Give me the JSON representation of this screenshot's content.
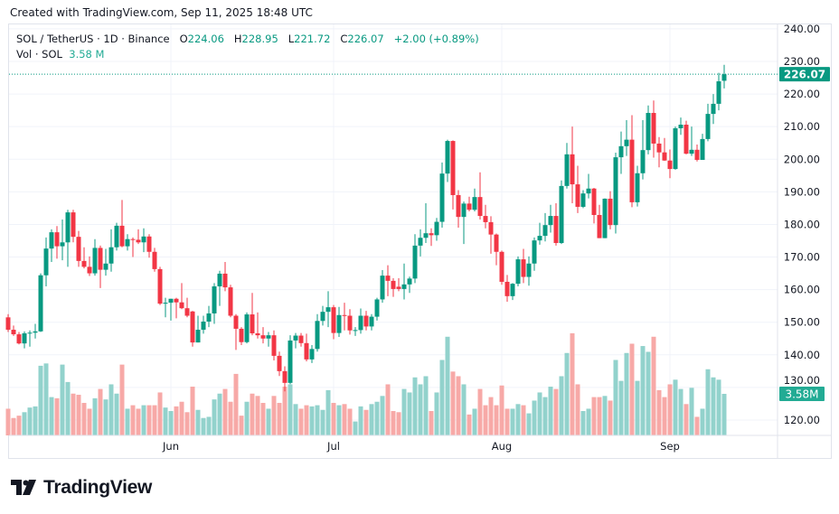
{
  "header": {
    "created_text": "Created with TradingView.com, Sep 11, 2025 18:48 UTC"
  },
  "legend": {
    "symbol": "SOL / TetherUS · 1D · Binance",
    "open_label": "O",
    "open": "224.06",
    "high_label": "H",
    "high": "228.95",
    "low_label": "L",
    "low": "221.72",
    "close_label": "C",
    "close": "226.07",
    "change": "+2.00 (+0.89%)",
    "volume_label": "Vol · SOL",
    "volume": "3.58 M"
  },
  "badges": {
    "last_price": "226.07",
    "last_volume": "3.58M"
  },
  "footer": {
    "logo_text": "TradingView"
  },
  "colors": {
    "up": "#089981",
    "down": "#F23645",
    "up_volume": "#92d2cc",
    "down_volume": "#f7a9a7",
    "grid": "#f0f3fa",
    "text": "#131722"
  },
  "chart_data": {
    "type": "candlestick",
    "title": "SOL / TetherUS · 1D · Binance",
    "interval": "1D",
    "ylim": [
      115,
      243
    ],
    "y_ticks": [
      "240.00",
      "230.00",
      "220.00",
      "210.00",
      "200.00",
      "190.00",
      "180.00",
      "170.00",
      "160.00",
      "150.00",
      "140.00",
      "130.00",
      "120.00"
    ],
    "x_ticks": [
      "Jun",
      "Jul",
      "Aug",
      "Sep"
    ],
    "grid": true,
    "volume_unit": "M",
    "candle_fields": [
      "open",
      "high",
      "low",
      "close",
      "volume"
    ],
    "candles": [
      [
        151.5,
        152.5,
        147,
        147.7,
        2.3
      ],
      [
        147.7,
        149,
        145.8,
        146.3,
        1.5
      ],
      [
        146.3,
        147,
        143.2,
        143.5,
        1.7
      ],
      [
        143.5,
        147.2,
        142,
        146.6,
        2.0
      ],
      [
        146.6,
        147.5,
        142.5,
        146.8,
        2.4
      ],
      [
        146.8,
        149.5,
        145,
        147.2,
        2.5
      ],
      [
        147.2,
        165,
        147,
        164.4,
        6.0
      ],
      [
        164.4,
        176,
        161,
        172.6,
        6.2
      ],
      [
        172.6,
        178.5,
        168.5,
        177.6,
        3.3
      ],
      [
        177.6,
        179.5,
        169.5,
        173.3,
        3.2
      ],
      [
        173.3,
        181.5,
        169,
        174.5,
        6.1
      ],
      [
        174.5,
        184.5,
        167,
        183.7,
        4.6
      ],
      [
        183.7,
        184.5,
        174.5,
        176.2,
        3.6
      ],
      [
        176.2,
        178,
        167,
        168.8,
        3.5
      ],
      [
        168.8,
        173,
        166.5,
        167,
        2.8
      ],
      [
        167,
        170.2,
        164.2,
        165,
        2.3
      ],
      [
        165,
        175.5,
        164.3,
        172.8,
        3.2
      ],
      [
        172.8,
        173.5,
        160.5,
        166.1,
        4.0
      ],
      [
        166.1,
        172.5,
        164.3,
        168,
        3.1
      ],
      [
        168,
        178.5,
        165.5,
        173,
        4.4
      ],
      [
        173,
        180.5,
        172,
        179.6,
        3.6
      ],
      [
        179.6,
        187.5,
        173,
        173.3,
        6.1
      ],
      [
        173.3,
        177,
        172,
        175.5,
        2.3
      ],
      [
        175.5,
        176,
        170,
        175.3,
        2.6
      ],
      [
        175.3,
        178.5,
        174,
        174.5,
        2.3
      ],
      [
        174.5,
        178.8,
        171.5,
        176.3,
        2.6
      ],
      [
        176.3,
        177,
        169.8,
        171.6,
        2.6
      ],
      [
        171.6,
        172.8,
        165.5,
        166.3,
        2.6
      ],
      [
        166.3,
        167,
        155.3,
        155.7,
        3.7
      ],
      [
        155.7,
        157.5,
        151.5,
        156,
        2.4
      ],
      [
        156,
        157.2,
        150.5,
        157.2,
        2.1
      ],
      [
        157.2,
        157.5,
        151.2,
        156.1,
        2.5
      ],
      [
        156.1,
        162,
        154,
        154.3,
        2.9
      ],
      [
        154.3,
        157.5,
        151.5,
        152,
        2.0
      ],
      [
        153.3,
        153.5,
        142.5,
        143.8,
        4.2
      ],
      [
        143.8,
        152,
        143.8,
        147.7,
        2.2
      ],
      [
        147.7,
        152,
        146.5,
        150.2,
        1.5
      ],
      [
        150.2,
        155,
        148.5,
        152.7,
        1.6
      ],
      [
        152.7,
        162,
        149.5,
        161,
        3.1
      ],
      [
        161,
        165.8,
        155,
        164.9,
        3.6
      ],
      [
        164.9,
        168.5,
        159.5,
        160.7,
        4.0
      ],
      [
        160.7,
        161.5,
        151.5,
        152,
        2.9
      ],
      [
        152,
        152.5,
        141.5,
        148,
        5.3
      ],
      [
        148,
        148.5,
        143,
        143.9,
        1.7
      ],
      [
        143.9,
        153,
        143.5,
        152.4,
        2.9
      ],
      [
        152.4,
        159,
        146,
        146.6,
        3.6
      ],
      [
        146.6,
        153,
        145,
        146,
        3.4
      ],
      [
        146,
        148.5,
        143.5,
        145,
        2.8
      ],
      [
        145,
        147,
        142.5,
        146,
        2.3
      ],
      [
        146,
        147.5,
        138.3,
        139.7,
        3.4
      ],
      [
        139.7,
        141,
        133.5,
        135,
        2.8
      ],
      [
        135,
        136.5,
        128.8,
        131.4,
        4.2
      ],
      [
        131.4,
        146,
        131,
        144.4,
        4.4
      ],
      [
        144.4,
        146.7,
        142,
        145.9,
        2.7
      ],
      [
        145.9,
        146.7,
        142.5,
        143.6,
        2.3
      ],
      [
        143.6,
        146.5,
        138,
        138.6,
        2.6
      ],
      [
        138.6,
        143,
        137.5,
        141.8,
        2.5
      ],
      [
        141.8,
        152.5,
        141,
        150.4,
        2.6
      ],
      [
        150.4,
        155,
        149,
        153.2,
        2.2
      ],
      [
        153.2,
        159.5,
        148.5,
        154.6,
        3.9
      ],
      [
        154.6,
        155.3,
        144.8,
        146.7,
        2.8
      ],
      [
        146.7,
        154.7,
        145.5,
        152.2,
        2.6
      ],
      [
        152.2,
        156,
        147.5,
        152,
        2.7
      ],
      [
        152,
        154,
        146.2,
        147.5,
        2.3
      ],
      [
        147.5,
        148.5,
        145.8,
        147.6,
        1.2
      ],
      [
        147.6,
        154.2,
        146.5,
        152,
        2.5
      ],
      [
        152,
        153.5,
        147.5,
        148.7,
        2.2
      ],
      [
        148.7,
        152.5,
        147.5,
        151.7,
        2.7
      ],
      [
        151.7,
        157.5,
        150.5,
        157,
        2.9
      ],
      [
        157,
        166,
        156,
        164.3,
        3.4
      ],
      [
        164.3,
        167.5,
        158,
        162.7,
        4.4
      ],
      [
        162.7,
        163.5,
        157.8,
        160.2,
        2.1
      ],
      [
        160.9,
        163.5,
        159.5,
        160.2,
        2.0
      ],
      [
        160.2,
        168,
        157,
        161.6,
        4.0
      ],
      [
        161.6,
        164,
        159,
        163.4,
        3.7
      ],
      [
        163.4,
        177,
        162,
        173.5,
        5.0
      ],
      [
        173.5,
        178.5,
        170.2,
        175.9,
        4.4
      ],
      [
        175.9,
        186.5,
        174.3,
        177.3,
        5.1
      ],
      [
        177.3,
        178.8,
        173.4,
        176.7,
        2.1
      ],
      [
        176.7,
        182,
        175,
        180.8,
        3.7
      ],
      [
        180.8,
        199,
        179,
        195.6,
        6.5
      ],
      [
        195.6,
        206,
        193,
        205.6,
        8.5
      ],
      [
        205.6,
        205.8,
        184.6,
        189,
        5.5
      ],
      [
        189,
        190.5,
        179,
        182.3,
        5.1
      ],
      [
        182.3,
        187,
        174,
        186.4,
        4.4
      ],
      [
        186.4,
        188.5,
        184,
        184.5,
        1.8
      ],
      [
        184.5,
        191,
        184,
        188.4,
        2.3
      ],
      [
        188.4,
        196,
        181.5,
        182.6,
        4.0
      ],
      [
        182.6,
        186,
        178.8,
        180.7,
        2.6
      ],
      [
        180.7,
        182.5,
        171,
        176.9,
        3.3
      ],
      [
        176.9,
        177.2,
        167.5,
        171.6,
        2.6
      ],
      [
        171.6,
        172,
        161.5,
        162.4,
        4.3
      ],
      [
        162.4,
        164.5,
        156.3,
        158,
        2.3
      ],
      [
        158,
        162,
        156.8,
        161.8,
        2.3
      ],
      [
        161.8,
        170.2,
        161,
        169.3,
        2.7
      ],
      [
        169.3,
        172.5,
        162,
        163.9,
        2.6
      ],
      [
        163.9,
        170.2,
        161.2,
        168,
        1.9
      ],
      [
        168,
        176,
        165.8,
        175.1,
        3.0
      ],
      [
        175.1,
        180.5,
        173.8,
        176.5,
        3.7
      ],
      [
        176.5,
        183.5,
        174.8,
        179.8,
        3.3
      ],
      [
        179.8,
        186,
        177.5,
        182.6,
        4.2
      ],
      [
        182.6,
        186.5,
        173.5,
        174.3,
        4.0
      ],
      [
        174.3,
        193.5,
        174,
        191.8,
        5.1
      ],
      [
        191.8,
        205,
        191,
        201.5,
        7.1
      ],
      [
        201.5,
        210,
        186.5,
        192.3,
        8.8
      ],
      [
        192.3,
        198,
        183.5,
        185.4,
        4.4
      ],
      [
        185.4,
        190.5,
        185,
        189.5,
        2.1
      ],
      [
        189.5,
        195.5,
        188,
        191,
        2.3
      ],
      [
        191,
        191.2,
        180.3,
        182.9,
        3.3
      ],
      [
        182.9,
        186,
        175.8,
        175.8,
        3.3
      ],
      [
        175.8,
        188,
        175.8,
        187.9,
        3.4
      ],
      [
        187.9,
        190.2,
        178.5,
        179.8,
        3.0
      ],
      [
        179.8,
        202,
        177.2,
        200.6,
        6.5
      ],
      [
        200.6,
        208.5,
        195.5,
        204,
        4.7
      ],
      [
        204,
        212,
        201,
        206,
        7.1
      ],
      [
        206,
        213.5,
        185.3,
        186.8,
        7.9
      ],
      [
        186.8,
        198,
        185.5,
        195.7,
        4.7
      ],
      [
        195.7,
        212,
        193.8,
        202.8,
        7.7
      ],
      [
        202.8,
        216.5,
        201.5,
        214.2,
        7.2
      ],
      [
        214.2,
        218,
        200.5,
        204.8,
        8.5
      ],
      [
        204.8,
        206.8,
        197.5,
        202.1,
        3.9
      ],
      [
        202.1,
        206.5,
        199.5,
        199.6,
        3.3
      ],
      [
        199.6,
        203,
        194.2,
        197,
        4.4
      ],
      [
        197,
        210,
        196.8,
        209.5,
        4.8
      ],
      [
        209.5,
        212.8,
        207.5,
        210.6,
        4.0
      ],
      [
        210.6,
        211.8,
        201.5,
        201.7,
        2.7
      ],
      [
        201.7,
        210,
        201,
        202.9,
        4.1
      ],
      [
        202.9,
        204.5,
        199.3,
        199.8,
        1.6
      ],
      [
        199.8,
        207.8,
        199.8,
        206.2,
        2.3
      ],
      [
        206.2,
        217,
        205.5,
        213.9,
        5.7
      ],
      [
        213.9,
        220,
        210.8,
        217,
        5.0
      ],
      [
        217,
        226.5,
        215,
        223.9,
        4.8
      ],
      [
        224.06,
        228.95,
        221.72,
        226.07,
        3.58
      ]
    ]
  }
}
